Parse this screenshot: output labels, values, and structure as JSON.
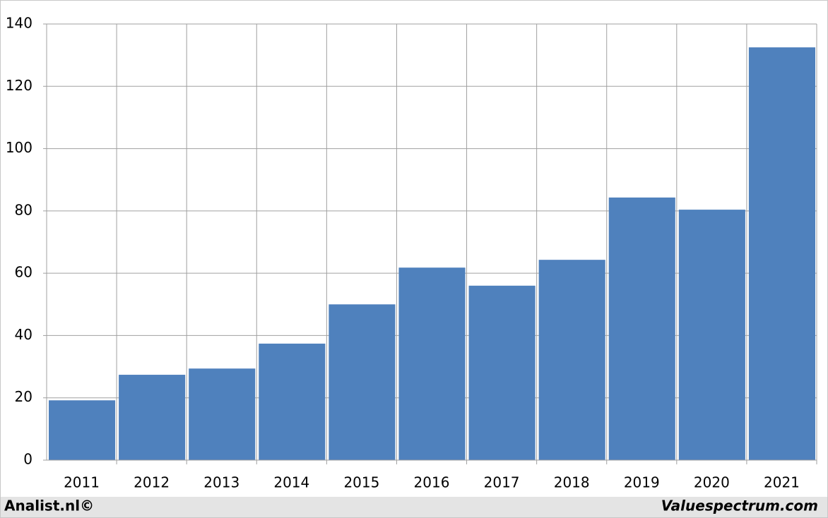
{
  "chart_data": {
    "type": "bar",
    "categories": [
      "2011",
      "2012",
      "2013",
      "2014",
      "2015",
      "2016",
      "2017",
      "2018",
      "2019",
      "2020",
      "2021"
    ],
    "values": [
      19.2,
      27.4,
      29.4,
      37.4,
      50,
      61.8,
      56,
      64.3,
      84.3,
      80.4,
      132.5
    ],
    "color": "#4f81bd",
    "ylim": [
      0,
      140
    ],
    "yticks": [
      0,
      20,
      40,
      60,
      80,
      100,
      120,
      140
    ],
    "grid": true
  },
  "footer": {
    "left": "Analist.nl©",
    "right": "Valuespectrum.com"
  }
}
